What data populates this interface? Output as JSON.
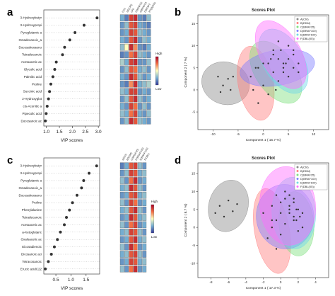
{
  "panels": [
    {
      "letter": "a",
      "kind": "vip",
      "xlabel": "VIP scores",
      "xticks": [
        1.0,
        1.5,
        2.0,
        2.5,
        3.0
      ],
      "xlim": [
        0.9,
        3.05
      ],
      "groups": [
        "C(n)",
        "SE(CRI)",
        "CRI",
        "CBRAFS2",
        "CBRAFS3",
        "CBRAF2",
        "FD(B(D5))"
      ],
      "legend": {
        "high": "High",
        "low": "Low"
      },
      "metabolites": [
        {
          "name": "3-Hydroxybutyr",
          "vip": 2.95,
          "heat": [
            0.25,
            0.15,
            0.85,
            0.9,
            0.2,
            0.15,
            0.3
          ]
        },
        {
          "name": "3-Hydroxypropi",
          "vip": 2.45,
          "heat": [
            0.2,
            0.3,
            0.8,
            0.85,
            0.25,
            0.2,
            0.15
          ]
        },
        {
          "name": "Pyroglutamic a",
          "vip": 2.1,
          "heat": [
            0.2,
            0.25,
            0.85,
            0.8,
            0.3,
            0.25,
            0.2
          ]
        },
        {
          "name": "Octadecanoic_a",
          "vip": 1.9,
          "heat": [
            0.25,
            0.2,
            0.8,
            0.9,
            0.2,
            0.3,
            0.25
          ]
        },
        {
          "name": "Docosahexaeno",
          "vip": 1.7,
          "heat": [
            0.3,
            0.5,
            0.9,
            0.7,
            0.2,
            0.15,
            0.25
          ]
        },
        {
          "name": "Tetradecanoic",
          "vip": 1.62,
          "heat": [
            0.15,
            0.2,
            0.75,
            0.85,
            0.3,
            0.25,
            0.2
          ]
        },
        {
          "name": "Acetoacetic ac",
          "vip": 1.38,
          "heat": [
            0.35,
            0.25,
            0.85,
            0.9,
            0.2,
            0.2,
            0.3
          ]
        },
        {
          "name": "Glycolic acid",
          "vip": 1.32,
          "heat": [
            0.2,
            0.3,
            0.8,
            0.75,
            0.25,
            0.3,
            0.2
          ]
        },
        {
          "name": "Palmitic acid",
          "vip": 1.25,
          "heat": [
            0.25,
            0.2,
            0.9,
            0.8,
            0.3,
            0.2,
            0.25
          ]
        },
        {
          "name": "Proline",
          "vip": 1.17,
          "heat": [
            0.2,
            0.15,
            0.7,
            0.9,
            0.25,
            0.3,
            0.35
          ]
        },
        {
          "name": "Succinic acid",
          "vip": 1.12,
          "heat": [
            0.3,
            0.25,
            0.85,
            0.85,
            0.2,
            0.25,
            0.2
          ]
        },
        {
          "name": "2-Hydroxyglut",
          "vip": 1.08,
          "heat": [
            0.2,
            0.3,
            0.8,
            0.9,
            0.3,
            0.2,
            0.25
          ]
        },
        {
          "name": "cis-Aconitic a",
          "vip": 1.03,
          "heat": [
            0.25,
            0.2,
            0.85,
            0.75,
            0.2,
            0.3,
            0.2
          ]
        },
        {
          "name": "Pipecolic acid",
          "vip": 0.99,
          "heat": [
            0.3,
            0.25,
            0.75,
            0.85,
            0.25,
            0.2,
            0.3
          ]
        },
        {
          "name": "Docosanoic ac",
          "vip": 0.96,
          "heat": [
            0.2,
            0.3,
            0.9,
            0.8,
            0.3,
            0.25,
            0.2
          ]
        }
      ]
    },
    {
      "letter": "b",
      "kind": "scores",
      "title": "Scores Plot",
      "xlabel": "Component 1 ( 15.7 %)",
      "ylabel": "Component 2 ( 7 %)",
      "xticks": [
        -10,
        -5,
        0,
        5,
        10
      ],
      "yticks": [
        -5,
        0,
        5,
        10,
        15
      ],
      "xlim": [
        -13,
        13
      ],
      "ylim": [
        -9,
        17
      ],
      "legend": [
        "A(Ctrl)",
        "B(EDM)",
        "C(BRAF35)",
        "D(BRAF100)",
        "E(BRAF100)",
        "F(DBL(05))"
      ],
      "colors": [
        "#8c8c8c",
        "#ff7f7f",
        "#7fe07f",
        "#7f7fff",
        "#6fd8e6",
        "#ff6cff"
      ],
      "ellipses": [
        {
          "cx": -7.5,
          "cy": 1.5,
          "rx": 4.2,
          "ry": 5.5,
          "angle": 70
        },
        {
          "cx": -1.5,
          "cy": 1.5,
          "rx": 3.5,
          "ry": 8.5,
          "angle": 10
        },
        {
          "cx": 2.5,
          "cy": 4,
          "rx": 4,
          "ry": 8,
          "angle": 35
        },
        {
          "cx": 2.8,
          "cy": 5,
          "rx": 7.5,
          "ry": 4,
          "angle": 10
        },
        {
          "cx": 4,
          "cy": 6.5,
          "rx": 4,
          "ry": 8,
          "angle": 30
        },
        {
          "cx": 3.5,
          "cy": 8,
          "rx": 4,
          "ry": 8.5,
          "angle": 30
        }
      ],
      "points": [
        {
          "g": 0,
          "x": -9,
          "y": 3
        },
        {
          "g": 0,
          "x": -8,
          "y": 1
        },
        {
          "g": 0,
          "x": -7,
          "y": 2.5
        },
        {
          "g": 0,
          "x": -6.5,
          "y": 0
        },
        {
          "g": 0,
          "x": -8.5,
          "y": -0.5
        },
        {
          "g": 0,
          "x": -6,
          "y": 3
        },
        {
          "g": 1,
          "x": -2,
          "y": 0
        },
        {
          "g": 1,
          "x": -1,
          "y": -3
        },
        {
          "g": 1,
          "x": -2.5,
          "y": 3
        },
        {
          "g": 1,
          "x": 0,
          "y": 1
        },
        {
          "g": 1,
          "x": -1.5,
          "y": 5
        },
        {
          "g": 1,
          "x": 1,
          "y": -1
        },
        {
          "g": 2,
          "x": 2,
          "y": 4
        },
        {
          "g": 2,
          "x": 3,
          "y": 2
        },
        {
          "g": 2,
          "x": 1,
          "y": 6
        },
        {
          "g": 2,
          "x": 4,
          "y": 5
        },
        {
          "g": 2,
          "x": 2.5,
          "y": 0
        },
        {
          "g": 2,
          "x": 5,
          "y": 3
        },
        {
          "g": 3,
          "x": 0,
          "y": 6
        },
        {
          "g": 3,
          "x": 3,
          "y": 7
        },
        {
          "g": 3,
          "x": 6,
          "y": 5
        },
        {
          "g": 3,
          "x": 7,
          "y": 4
        },
        {
          "g": 3,
          "x": -1,
          "y": 5
        },
        {
          "g": 3,
          "x": 4.5,
          "y": 6
        },
        {
          "g": 4,
          "x": 3.5,
          "y": 9
        },
        {
          "g": 4,
          "x": 5,
          "y": 7
        },
        {
          "g": 4,
          "x": 2,
          "y": 8
        },
        {
          "g": 4,
          "x": 6,
          "y": 9
        },
        {
          "g": 4,
          "x": 4,
          "y": 4
        },
        {
          "g": 4,
          "x": 7,
          "y": 6
        },
        {
          "g": 5,
          "x": 3,
          "y": 11
        },
        {
          "g": 5,
          "x": 2,
          "y": 9
        },
        {
          "g": 5,
          "x": 5,
          "y": 10
        },
        {
          "g": 5,
          "x": 4,
          "y": 6
        },
        {
          "g": 5,
          "x": 6,
          "y": 8
        },
        {
          "g": 5,
          "x": 1.5,
          "y": 7
        }
      ]
    },
    {
      "letter": "c",
      "kind": "vip",
      "xlabel": "VIP scores",
      "xticks": [
        0.5,
        1.0,
        1.5
      ],
      "xlim": [
        0.1,
        1.95
      ],
      "groups": [
        "A(Ctrl)",
        "B(EDM)",
        "C(BRAF35)",
        "D(BRAF100)",
        "E(BRAF100)",
        "F(DBL)"
      ],
      "legend": {
        "high": "High",
        "low": "Low"
      },
      "metabolites": [
        {
          "name": "3-Hydroxybutyr",
          "vip": 1.85,
          "heat": [
            0.15,
            0.25,
            0.8,
            0.85,
            0.3,
            0.2
          ]
        },
        {
          "name": "3-Hydroxypropi",
          "vip": 1.6,
          "heat": [
            0.2,
            0.3,
            0.85,
            0.8,
            0.25,
            0.3
          ]
        },
        {
          "name": "Pyroglutamic a",
          "vip": 1.42,
          "heat": [
            0.3,
            0.2,
            0.75,
            0.9,
            0.2,
            0.25
          ]
        },
        {
          "name": "Octadecanoic_a",
          "vip": 1.35,
          "heat": [
            0.25,
            0.3,
            0.9,
            0.8,
            0.3,
            0.2
          ]
        },
        {
          "name": "Docosahexaeno",
          "vip": 1.2,
          "heat": [
            0.2,
            0.25,
            0.8,
            0.85,
            0.25,
            0.3
          ]
        },
        {
          "name": "Proline",
          "vip": 1.05,
          "heat": [
            0.3,
            0.2,
            0.85,
            0.75,
            0.2,
            0.25
          ]
        },
        {
          "name": "Phenylalanine",
          "vip": 0.95,
          "heat": [
            0.25,
            0.3,
            0.8,
            0.9,
            0.3,
            0.2
          ]
        },
        {
          "name": "Tetradecanoic",
          "vip": 0.85,
          "heat": [
            0.2,
            0.25,
            0.9,
            0.8,
            0.25,
            0.3
          ]
        },
        {
          "name": "Acetoacetic ac",
          "vip": 0.78,
          "heat": [
            0.3,
            0.2,
            0.75,
            0.85,
            0.2,
            0.25
          ]
        },
        {
          "name": "a-Ketoglutaric",
          "vip": 0.65,
          "heat": [
            0.25,
            0.3,
            0.85,
            0.8,
            0.3,
            0.2
          ]
        },
        {
          "name": "Oxaloacetic ac",
          "vip": 0.55,
          "heat": [
            0.2,
            0.25,
            0.8,
            0.9,
            0.25,
            0.3
          ]
        },
        {
          "name": "Eicosadienoic",
          "vip": 0.45,
          "heat": [
            0.3,
            0.2,
            0.9,
            0.75,
            0.2,
            0.25
          ]
        },
        {
          "name": "Dicosanoic aci",
          "vip": 0.35,
          "heat": [
            0.25,
            0.3,
            0.8,
            0.85,
            0.3,
            0.2
          ]
        },
        {
          "name": "Tetracosanoic",
          "vip": 0.25,
          "heat": [
            0.2,
            0.25,
            0.85,
            0.8,
            0.25,
            0.3
          ]
        },
        {
          "name": "Erucic acidC22",
          "vip": 0.15,
          "heat": [
            0.3,
            0.2,
            0.75,
            0.9,
            0.2,
            0.25
          ]
        }
      ]
    },
    {
      "letter": "d",
      "kind": "scores",
      "title": "Scores Plot",
      "xlabel": "Component 1 ( 17.3 %)",
      "ylabel": "Component 2 ( 8.7 %)",
      "xticks": [
        -8,
        -6,
        -4,
        -2,
        0,
        2,
        4
      ],
      "yticks": [
        -10,
        -5,
        0,
        5,
        10,
        15
      ],
      "xlim": [
        -9.5,
        5.5
      ],
      "ylim": [
        -14,
        18
      ],
      "legend": [
        "A(Ctrl)",
        "B(EDM)",
        "C(BRAF35)",
        "D(BRAF100)",
        "E(BRAF100)",
        "F(DBL(05))"
      ],
      "colors": [
        "#8c8c8c",
        "#ff7f7f",
        "#7fe07f",
        "#7f7fff",
        "#6fd8e6",
        "#ff6cff"
      ],
      "ellipses": [
        {
          "cx": -6,
          "cy": 6,
          "rx": 3,
          "ry": 5.5,
          "angle": 75
        },
        {
          "cx": -1,
          "cy": -1,
          "rx": 2,
          "ry": 12,
          "angle": 10
        },
        {
          "cx": 1.8,
          "cy": 1,
          "rx": 2,
          "ry": 9,
          "angle": 5
        },
        {
          "cx": 0.5,
          "cy": 3,
          "rx": 3.3,
          "ry": 9,
          "angle": 5
        },
        {
          "cx": 1.5,
          "cy": 4,
          "rx": 2.5,
          "ry": 10,
          "angle": 3
        },
        {
          "cx": 0.8,
          "cy": 6,
          "rx": 3.2,
          "ry": 11,
          "angle": 5
        }
      ],
      "points": [
        {
          "g": 0,
          "x": -7,
          "y": 6
        },
        {
          "g": 0,
          "x": -6,
          "y": 7.5
        },
        {
          "g": 0,
          "x": -5.5,
          "y": 4.5
        },
        {
          "g": 0,
          "x": -7.5,
          "y": 4
        },
        {
          "g": 0,
          "x": -5,
          "y": 6.5
        },
        {
          "g": 0,
          "x": -6.5,
          "y": 3
        },
        {
          "g": 1,
          "x": -1,
          "y": 2
        },
        {
          "g": 1,
          "x": -1.5,
          "y": -3
        },
        {
          "g": 1,
          "x": -0.5,
          "y": -6
        },
        {
          "g": 1,
          "x": -2,
          "y": 4
        },
        {
          "g": 1,
          "x": -1,
          "y": 0
        },
        {
          "g": 1,
          "x": 0,
          "y": -2
        },
        {
          "g": 2,
          "x": 1.5,
          "y": 2
        },
        {
          "g": 2,
          "x": 2,
          "y": -1
        },
        {
          "g": 2,
          "x": 1,
          "y": 4
        },
        {
          "g": 2,
          "x": 2.5,
          "y": 0
        },
        {
          "g": 2,
          "x": 1.8,
          "y": 5
        },
        {
          "g": 2,
          "x": 2.2,
          "y": 3
        },
        {
          "g": 3,
          "x": 0,
          "y": 4
        },
        {
          "g": 3,
          "x": 1,
          "y": 6
        },
        {
          "g": 3,
          "x": -0.5,
          "y": 2
        },
        {
          "g": 3,
          "x": 0.5,
          "y": 8
        },
        {
          "g": 3,
          "x": 1.5,
          "y": 3
        },
        {
          "g": 3,
          "x": -1,
          "y": 6
        },
        {
          "g": 4,
          "x": 1.5,
          "y": 7
        },
        {
          "g": 4,
          "x": 2,
          "y": 5
        },
        {
          "g": 4,
          "x": 1,
          "y": 9
        },
        {
          "g": 4,
          "x": 2.5,
          "y": 4
        },
        {
          "g": 4,
          "x": 0.5,
          "y": 1
        },
        {
          "g": 4,
          "x": 1.8,
          "y": 2
        },
        {
          "g": 5,
          "x": 0.5,
          "y": 10
        },
        {
          "g": 5,
          "x": 1.5,
          "y": 8
        },
        {
          "g": 5,
          "x": 0,
          "y": 7
        },
        {
          "g": 5,
          "x": 1,
          "y": 5
        },
        {
          "g": 5,
          "x": 2,
          "y": 11
        },
        {
          "g": 5,
          "x": -0.5,
          "y": 9
        }
      ]
    }
  ],
  "chart_data": [
    {
      "type": "scatter",
      "title": "",
      "xlabel": "VIP scores",
      "xlim": [
        0.9,
        3.05
      ],
      "categories": [
        "3-Hydroxybutyr",
        "3-Hydroxypropi",
        "Pyroglutamic a",
        "Octadecanoic_a",
        "Docosahexaeno",
        "Tetradecanoic",
        "Acetoacetic ac",
        "Glycolic acid",
        "Palmitic acid",
        "Proline",
        "Succinic acid",
        "2-Hydroxyglut",
        "cis-Aconitic a",
        "Pipecolic acid",
        "Docosanoic ac"
      ],
      "values": [
        2.95,
        2.45,
        2.1,
        1.9,
        1.7,
        1.62,
        1.38,
        1.32,
        1.25,
        1.17,
        1.12,
        1.08,
        1.03,
        0.99,
        0.96
      ]
    },
    {
      "type": "scatter",
      "title": "Scores Plot",
      "xlabel": "Component 1 ( 15.7 %)",
      "ylabel": "Component 2 ( 7 %)",
      "xlim": [
        -13,
        13
      ],
      "ylim": [
        -9,
        17
      ]
    },
    {
      "type": "scatter",
      "title": "",
      "xlabel": "VIP scores",
      "xlim": [
        0.1,
        1.95
      ],
      "categories": [
        "3-Hydroxybutyr",
        "3-Hydroxypropi",
        "Pyroglutamic a",
        "Octadecanoic_a",
        "Docosahexaeno",
        "Proline",
        "Phenylalanine",
        "Tetradecanoic",
        "Acetoacetic ac",
        "a-Ketoglutaric",
        "Oxaloacetic ac",
        "Eicosadienoic",
        "Dicosanoic aci",
        "Tetracosanoic",
        "Erucic acidC22"
      ],
      "values": [
        1.85,
        1.6,
        1.42,
        1.35,
        1.2,
        1.05,
        0.95,
        0.85,
        0.78,
        0.65,
        0.55,
        0.45,
        0.35,
        0.25,
        0.15
      ]
    },
    {
      "type": "scatter",
      "title": "Scores Plot",
      "xlabel": "Component 1 ( 17.3 %)",
      "ylabel": "Component 2 ( 8.7 %)",
      "xlim": [
        -9.5,
        5.5
      ],
      "ylim": [
        -14,
        18
      ]
    }
  ]
}
